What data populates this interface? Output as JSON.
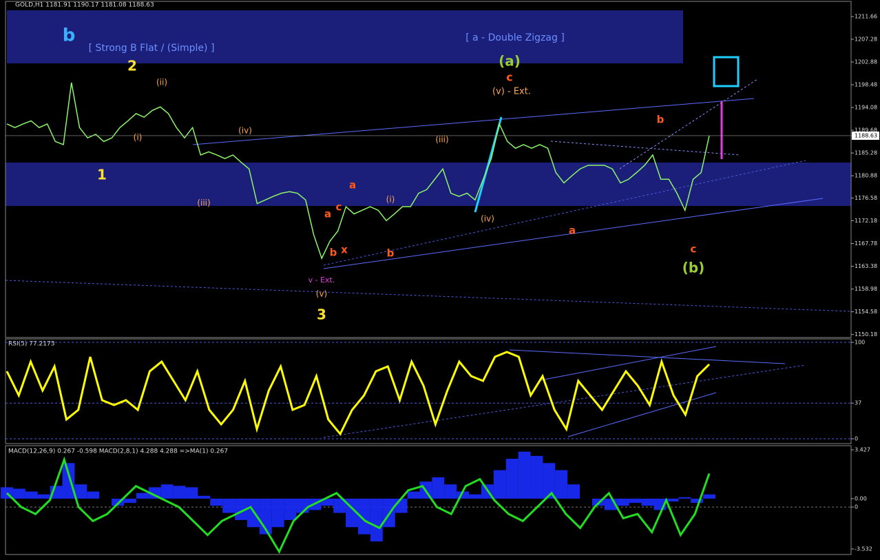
{
  "chart_data": [
    {
      "type": "line",
      "title": "GOLD,H1  1181.91 1190.17 1181.08 1188.63",
      "color": "#8cf56a",
      "values": [
        1190.9,
        1190.2,
        1190.9,
        1191.5,
        1190.2,
        1190.9,
        1187.5,
        1186.9,
        1198.9,
        1190.2,
        1188.2,
        1188.9,
        1187.5,
        1188.2,
        1190.2,
        1191.5,
        1192.9,
        1192.2,
        1193.5,
        1194.2,
        1192.9,
        1190.2,
        1188.2,
        1190.2,
        1184.9,
        1185.5,
        1184.9,
        1184.2,
        1184.9,
        1183.5,
        1182.2,
        1175.5,
        1176.2,
        1176.9,
        1177.5,
        1177.8,
        1177.5,
        1176.2,
        1169.5,
        1164.9,
        1168.2,
        1170.2,
        1174.9,
        1173.5,
        1174.2,
        1174.9,
        1174.2,
        1172.2,
        1173.5,
        1174.9,
        1174.9,
        1177.5,
        1178.2,
        1180.2,
        1182.2,
        1177.5,
        1176.9,
        1177.5,
        1176.2,
        1180.2,
        1184.2,
        1190.9,
        1187.5,
        1186.2,
        1186.9,
        1186.2,
        1186.9,
        1186.2,
        1181.5,
        1179.5,
        1180.9,
        1182.2,
        1182.9,
        1182.9,
        1182.9,
        1182.2,
        1179.5,
        1180.2,
        1181.5,
        1182.9,
        1184.9,
        1180.2,
        1180.2,
        1177.5,
        1174.2,
        1180.2,
        1181.5,
        1188.63
      ],
      "ylim": [
        1149.6,
        1214.6
      ],
      "yticks": [
        1211.66,
        1207.28,
        1202.88,
        1198.48,
        1194.08,
        1189.68,
        1185.28,
        1180.88,
        1176.58,
        1172.18,
        1167.78,
        1163.38,
        1158.98,
        1154.58,
        1150.18
      ],
      "annotations": [
        {
          "text": "b",
          "color": "#3ab0ff"
        },
        {
          "text": "[ Strong B Flat / (Simple) ]",
          "color": "#6a90ff"
        },
        {
          "text": "[ a - Double Zigzag ]",
          "color": "#6a90ff"
        },
        {
          "text": "2",
          "color": "#ffe030"
        },
        {
          "text": "1",
          "color": "#ffe030"
        },
        {
          "text": "3",
          "color": "#ffe030"
        },
        {
          "text": "(a)",
          "color": "#9acd32"
        },
        {
          "text": "c",
          "color": "#ff5a1a"
        },
        {
          "text": "(v) - Ext.",
          "color": "#ffa64d"
        },
        {
          "text": "(b)",
          "color": "#9acd32"
        },
        {
          "text": "c",
          "color": "#ff5a1a"
        },
        {
          "text": "b",
          "color": "#ff5a1a"
        },
        {
          "text": "a",
          "color": "#ff5a1a"
        },
        {
          "text": "a",
          "color": "#ff5a1a"
        },
        {
          "text": "b",
          "color": "#ff5a1a"
        },
        {
          "text": "c",
          "color": "#ff5a1a"
        },
        {
          "text": "x",
          "color": "#ff5a1a"
        },
        {
          "text": "a",
          "color": "#ff5a1a"
        },
        {
          "text": "b",
          "color": "#ff5a1a"
        },
        {
          "text": "(iii)",
          "color": "#ffa64d"
        },
        {
          "text": "(iv)",
          "color": "#ffa64d"
        },
        {
          "text": "(v)",
          "color": "#ffa64d"
        },
        {
          "text": "(ii)",
          "color": "#ffa64d"
        },
        {
          "text": "(i)",
          "color": "#ffa64d"
        },
        {
          "text": "(iv)",
          "color": "#ffa64d"
        },
        {
          "text": "(iii)",
          "color": "#ffa64d"
        },
        {
          "text": "(i)",
          "color": "#ffa64d"
        },
        {
          "text": "v - Ext.",
          "color": "#e040e0"
        }
      ]
    },
    {
      "type": "line",
      "title": "RSI(5) 77.2173",
      "color": "#ffff00",
      "values": [
        70,
        45,
        80,
        50,
        75,
        20,
        30,
        85,
        40,
        35,
        40,
        30,
        70,
        80,
        60,
        40,
        70,
        30,
        15,
        30,
        60,
        10,
        50,
        75,
        30,
        35,
        65,
        20,
        5,
        30,
        45,
        70,
        75,
        40,
        80,
        55,
        15,
        50,
        80,
        65,
        60,
        85,
        90,
        85,
        45,
        65,
        30,
        10,
        60,
        45,
        30,
        50,
        70,
        55,
        35,
        80,
        45,
        25,
        65,
        77.2173
      ],
      "ylim": [
        -5,
        103.6
      ],
      "yticks": [
        100,
        37,
        0
      ]
    },
    {
      "type": "combo",
      "title": "MACD(12,26,9) 0.267 -0.598  MACD(2,8,1) 4.288 4.288 =>MA(1) 0.267",
      "series": [
        {
          "color": "#1a2cff",
          "values": [
            0.8,
            0.7,
            0.5,
            0.3,
            0.9,
            2.5,
            1.0,
            0.5,
            0,
            -0.5,
            -0.3,
            0.4,
            0.8,
            1.0,
            0.9,
            0.8,
            0.2,
            -0.5,
            -1.0,
            -1.5,
            -2.0,
            -2.5,
            -2.0,
            -1.5,
            -1.0,
            -0.8,
            -0.5,
            -1.0,
            -2.0,
            -2.5,
            -3.0,
            -2.0,
            -1.0,
            0.5,
            1.2,
            1.5,
            1.0,
            0.5,
            0.3,
            1.0,
            2.0,
            2.8,
            3.3,
            3.0,
            2.5,
            2.0,
            1.0,
            0.0,
            -0.5,
            -0.8,
            -0.5,
            -0.3,
            -0.5,
            -0.8,
            -0.2,
            0.1,
            -0.3,
            0.3
          ]
        },
        {
          "color": "#22dd22",
          "axis": "y2",
          "values": [
            1.0,
            0,
            -0.5,
            0.5,
            3.4,
            0,
            -1,
            -0.5,
            0.5,
            1.5,
            1.0,
            0.5,
            0,
            -1,
            -2,
            -1,
            -0.5,
            0,
            -1.5,
            -3.2,
            -1,
            0,
            0.5,
            1,
            0,
            -1,
            -1.5,
            0,
            1.2,
            1.5,
            0,
            -0.5,
            1.5,
            2.0,
            0.5,
            -0.5,
            -1,
            0,
            1.0,
            -0.5,
            -1.5,
            0,
            1.0,
            -0.8,
            -0.5,
            -1.8,
            0.5,
            -2,
            -0.5,
            2.4
          ]
        }
      ],
      "ylim": [
        -3.92,
        3.72
      ],
      "yticks": [
        3.427,
        {
          "value": 0,
          "label": "0.00"
        },
        -3.532
      ],
      "y2lim": [
        -3.4,
        4.4
      ],
      "y2ticks": [
        0
      ]
    }
  ]
}
